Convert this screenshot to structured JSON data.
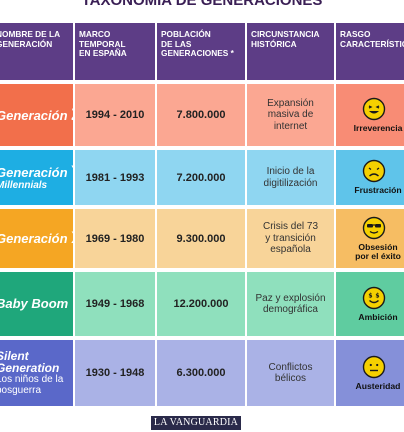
{
  "title": "TAXONOMÍA DE GENERACIONES",
  "columns": [
    "NOMBRE DE LA\nGENERACIÓN",
    "MARCO\nTEMPORAL\nEN ESPAÑA",
    "POBLACIÓN\nDE LAS\nGENERACIONES *",
    "CIRCUNSTANCIA\nHISTÓRICA",
    "RASGO\nCARACTERÍSTICO"
  ],
  "rows": [
    {
      "name_main": "Generación",
      "name_letter": "Z",
      "name_sub": "",
      "name_extra": "",
      "period": "1994 - 2010",
      "population": "7.800.000",
      "circumstance": "Expansión\nmasiva de\ninternet",
      "trait": "Irreverencia",
      "emoji": "laughing-face-icon",
      "color_name": "#f26f4b",
      "color_light": "#fba792",
      "color_mid": "#f88c75"
    },
    {
      "name_main": "Generación",
      "name_letter": "Y",
      "name_sub": "Millennials",
      "name_extra": "",
      "period": "1981 - 1993",
      "population": "7.200.000",
      "circumstance": "Inicio de la\ndigitilización",
      "trait": "Frustración",
      "emoji": "frustrated-face-icon",
      "color_name": "#1eaee3",
      "color_light": "#8fd6f1",
      "color_mid": "#5fc4ea"
    },
    {
      "name_main": "Generación",
      "name_letter": "X",
      "name_sub": "",
      "name_extra": "",
      "period": "1969 - 1980",
      "population": "9.300.000",
      "circumstance": "Crisis del 73\ny transición\nespañola",
      "trait": "Obsesión\npor el éxito",
      "emoji": "sunglasses-face-icon",
      "color_name": "#f5a623",
      "color_light": "#f8d499",
      "color_mid": "#f6bd63"
    },
    {
      "name_main": "Baby Boom",
      "name_letter": "",
      "name_sub": "",
      "name_extra": "",
      "period": "1949 - 1968",
      "population": "12.200.000",
      "circumstance": "Paz y explosión\ndemográfica",
      "trait": "Ambición",
      "emoji": "money-face-icon",
      "color_name": "#1fa77b",
      "color_light": "#8fe0bd",
      "color_mid": "#5fcca0"
    },
    {
      "name_main": "Silent",
      "name_letter": "",
      "name_sub": "Generation",
      "name_extra": "Los niños de la\nposguerra",
      "period": "1930 - 1948",
      "population": "6.300.000",
      "circumstance": "Conflictos\nbélicos",
      "trait": "Austeridad",
      "emoji": "neutral-face-icon",
      "color_name": "#5a68c9",
      "color_light": "#aab2e6",
      "color_mid": "#8590d9"
    }
  ],
  "logo_text": "LA VANGUARDIA",
  "chart_data": {
    "type": "table",
    "title": "TAXONOMÍA DE GENERACIONES",
    "headers": [
      "NOMBRE DE LA GENERACIÓN",
      "MARCO TEMPORAL EN ESPAÑA",
      "POBLACIÓN DE LAS GENERACIONES *",
      "CIRCUNSTANCIA HISTÓRICA",
      "RASGO CARACTERÍSTICO"
    ],
    "rows": [
      [
        "Generación Z",
        "1994 - 2010",
        7800000,
        "Expansión masiva de internet",
        "Irreverencia"
      ],
      [
        "Generación Y (Millennials)",
        "1981 - 1993",
        7200000,
        "Inicio de la digitilización",
        "Frustración"
      ],
      [
        "Generación X",
        "1969 - 1980",
        9300000,
        "Crisis del 73 y transición española",
        "Obsesión por el éxito"
      ],
      [
        "Baby Boom",
        "1949 - 1968",
        12200000,
        "Paz y explosión demográfica",
        "Ambición"
      ],
      [
        "Silent Generation (Los niños de la posguerra)",
        "1930 - 1948",
        6300000,
        "Conflictos bélicos",
        "Austeridad"
      ]
    ]
  }
}
